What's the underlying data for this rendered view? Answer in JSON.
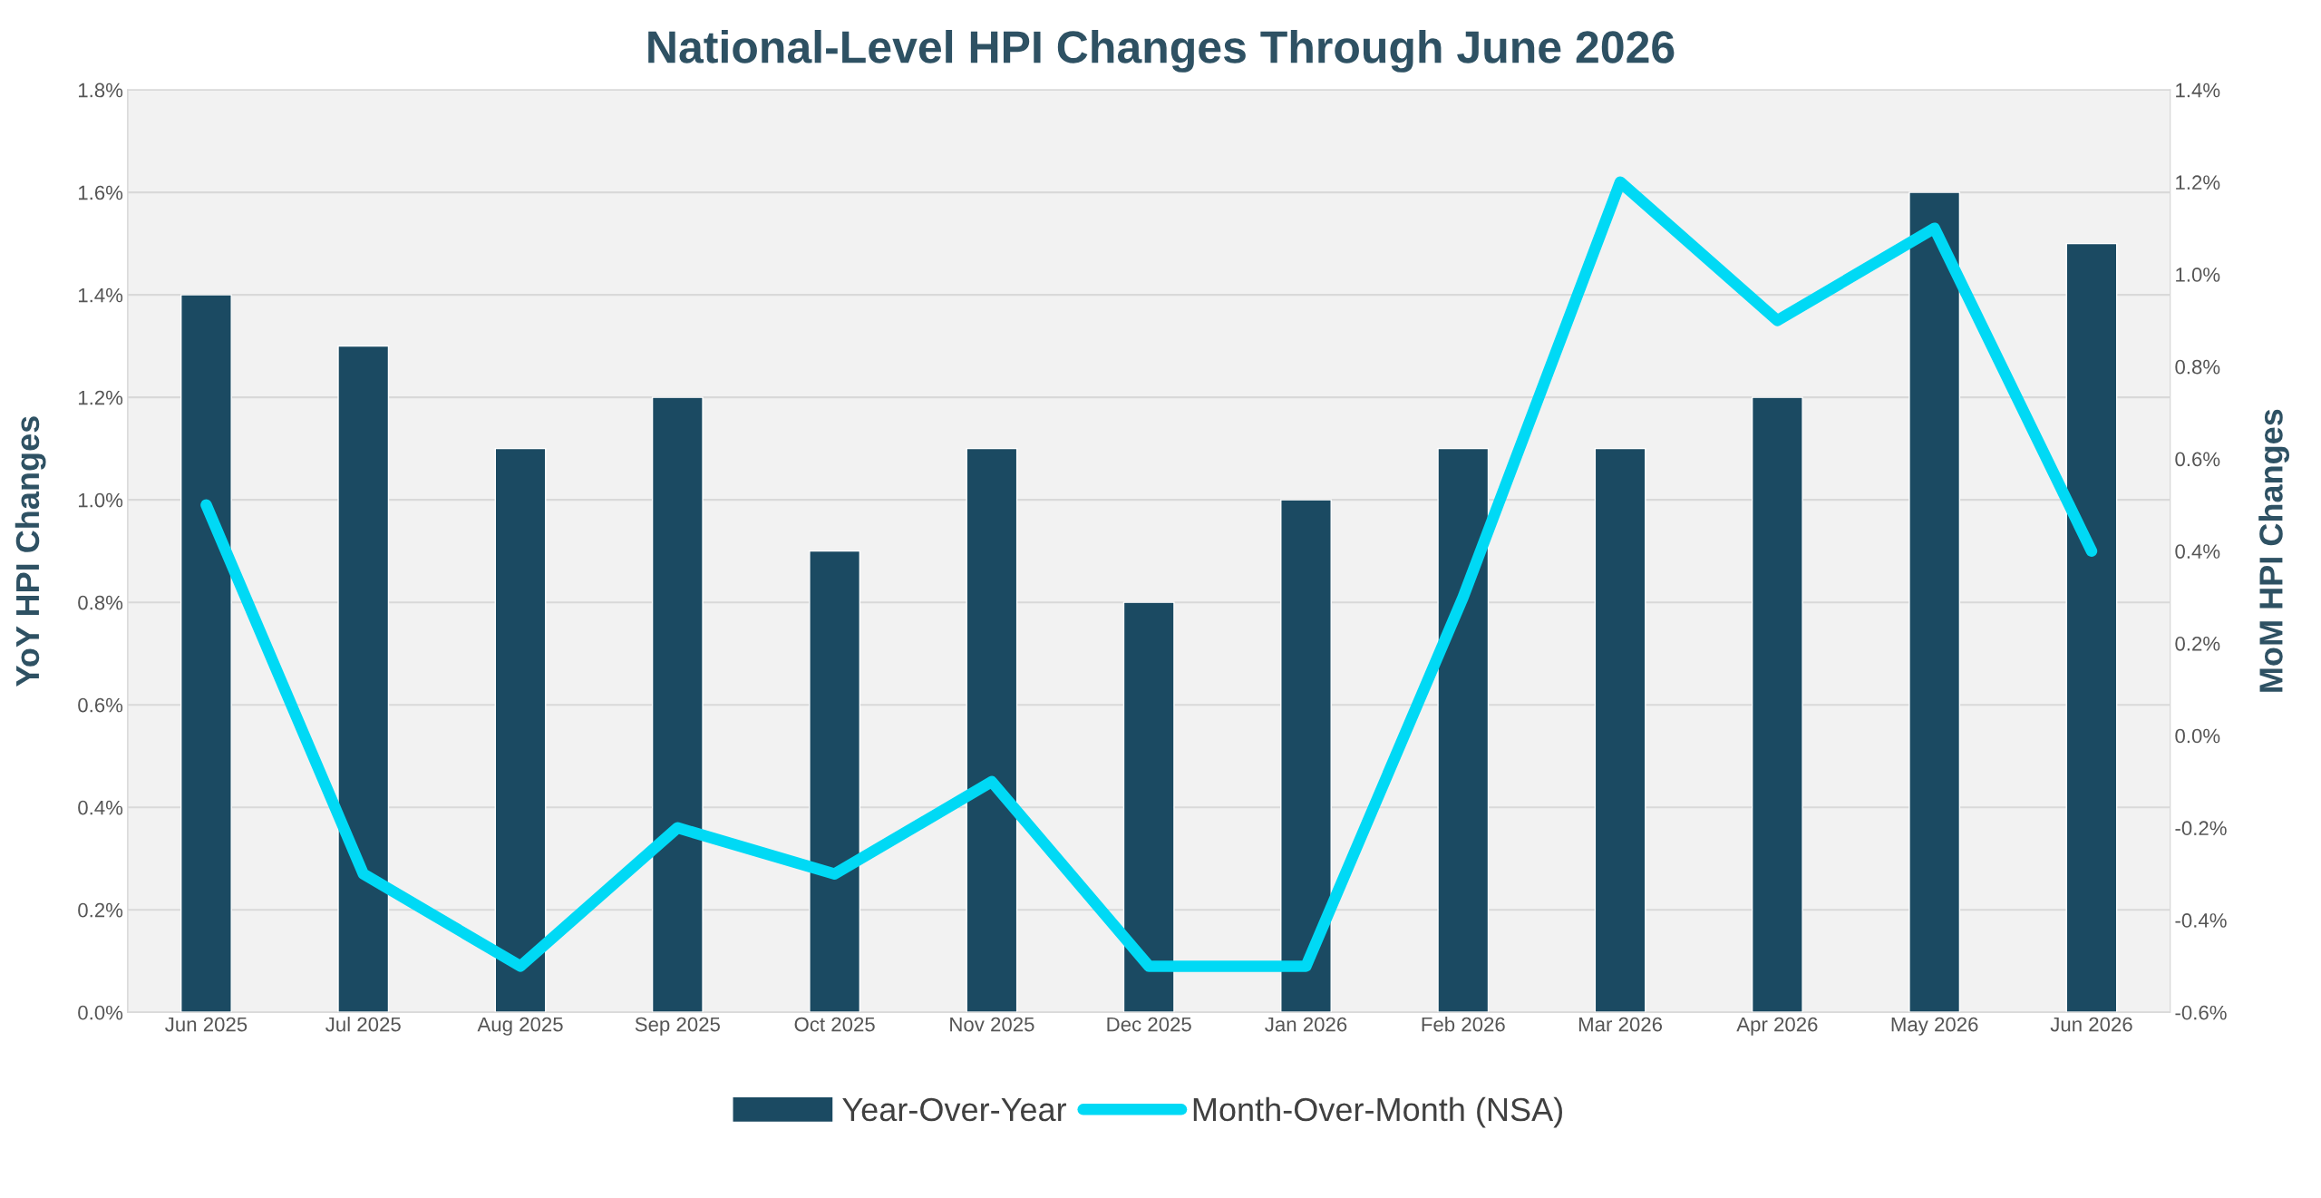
{
  "chart_data": {
    "type": "bar",
    "title": "National-Level HPI Changes Through June 2026",
    "ylabel": "YoY HPI Changes",
    "y2label": "MoM HPI Changes",
    "categories": [
      "Jun 2025",
      "Jul 2025",
      "Aug 2025",
      "Sep 2025",
      "Oct 2025",
      "Nov 2025",
      "Dec 2025",
      "Jan 2026",
      "Feb 2026",
      "Mar 2026",
      "Apr 2026",
      "May 2026",
      "Jun 2026"
    ],
    "series": [
      {
        "name": "Year-Over-Year",
        "color": "#1b4a62",
        "values": [
          1.4,
          1.3,
          1.1,
          1.2,
          0.9,
          1.1,
          0.8,
          1.0,
          1.1,
          1.1,
          1.2,
          1.6,
          1.5
        ]
      },
      {
        "name": "Month-Over-Month (NSA)",
        "type": "line",
        "axis": "y2",
        "color": "#00d9f5",
        "values": [
          0.5,
          -0.3,
          -0.5,
          -0.2,
          -0.3,
          -0.1,
          -0.5,
          -0.5,
          0.3,
          1.2,
          0.9,
          1.1,
          0.4
        ]
      }
    ],
    "ylim": [
      0,
      1.8
    ],
    "yticks": [
      {
        "value": 0,
        "label": "0.0%"
      },
      {
        "value": 0.2,
        "label": "0.2%"
      },
      {
        "value": 0.4,
        "label": "0.4%"
      },
      {
        "value": 0.6,
        "label": "0.6%"
      },
      {
        "value": 0.8,
        "label": "0.8%"
      },
      {
        "value": 1.0,
        "label": "1.0%"
      },
      {
        "value": 1.2,
        "label": "1.2%"
      },
      {
        "value": 1.4,
        "label": "1.4%"
      },
      {
        "value": 1.6,
        "label": "1.6%"
      },
      {
        "value": 1.8,
        "label": "1.8%"
      }
    ],
    "y2lim": [
      -0.6,
      1.4
    ],
    "y2ticks": [
      {
        "value": -0.6,
        "label": "-0.6%"
      },
      {
        "value": -0.4,
        "label": "-0.4%"
      },
      {
        "value": -0.2,
        "label": "-0.2%"
      },
      {
        "value": 0,
        "label": "0.0%"
      },
      {
        "value": 0.2,
        "label": "0.2%"
      },
      {
        "value": 0.4,
        "label": "0.4%"
      },
      {
        "value": 0.6,
        "label": "0.6%"
      },
      {
        "value": 0.8,
        "label": "0.8%"
      },
      {
        "value": 1.0,
        "label": "1.0%"
      },
      {
        "value": 1.2,
        "label": "1.2%"
      },
      {
        "value": 1.4,
        "label": "1.4%"
      }
    ],
    "grid": "y",
    "legend": "bottom",
    "marker": "none",
    "line_style": "solid"
  }
}
